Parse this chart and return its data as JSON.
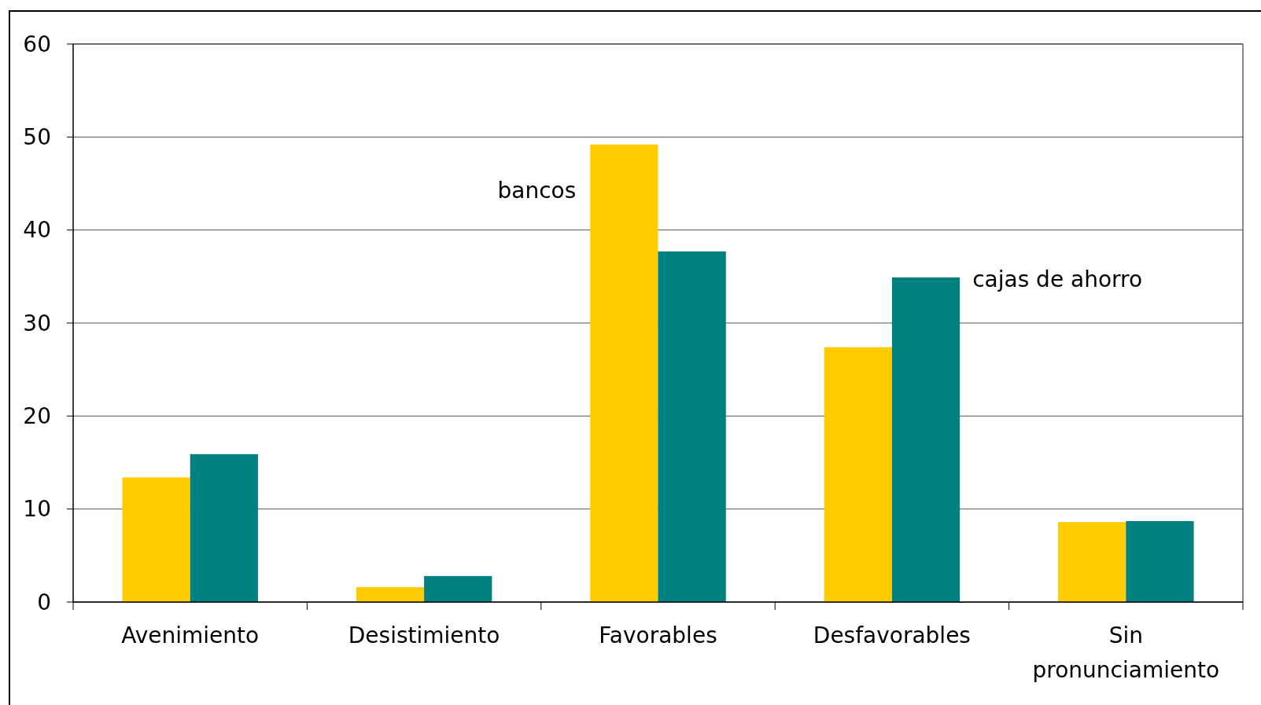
{
  "chart_data": {
    "type": "bar",
    "categories": [
      "Avenimiento",
      "Desistimiento",
      "Favorables",
      "Desfavorables",
      "Sin pronunciamiento"
    ],
    "series": [
      {
        "name": "bancos",
        "color": "#ffcc00",
        "values": [
          13.4,
          1.6,
          49.2,
          27.4,
          8.6
        ]
      },
      {
        "name": "cajas de ahorro",
        "color": "#008080",
        "values": [
          15.9,
          2.8,
          37.7,
          34.9,
          8.7
        ]
      }
    ],
    "ylim": [
      0,
      60
    ],
    "yticks": [
      0,
      10,
      20,
      30,
      40,
      50,
      60
    ],
    "grid": "y"
  }
}
